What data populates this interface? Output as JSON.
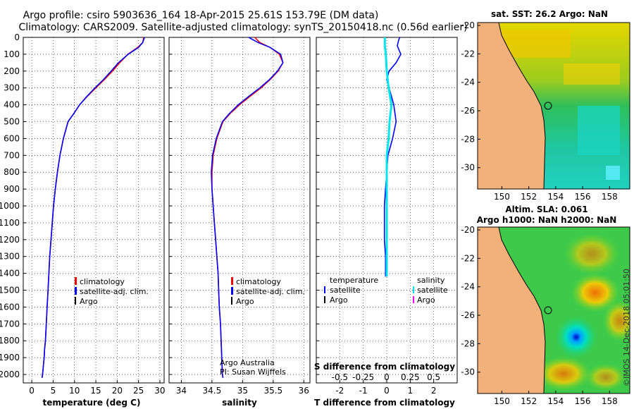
{
  "title_line1": "Argo profile: csiro 5903636_164 18-Apr-2015 25.61S 153.79E (DM data)",
  "title_line2": "Climatology: CARS2009. Satellite-adjusted climatology: synTS_20150418.nc (0.56d earlier)",
  "colors": {
    "climatology": "#ff0000",
    "satellite": "#0000ff",
    "argo": "#000000",
    "satellite_sal": "#00e5ee",
    "argo_sal": "#ff00ff"
  },
  "depth_ticks": [
    0,
    100,
    200,
    300,
    400,
    500,
    600,
    700,
    800,
    900,
    1000,
    1100,
    1200,
    1300,
    1400,
    1500,
    1600,
    1700,
    1800,
    1900,
    2000
  ],
  "legend": {
    "climatology": "climatology",
    "satellite": "satellite-adj. clim.",
    "argo": "Argo"
  },
  "diff_legend": {
    "temperature": "temperature",
    "salinity": "salinity",
    "satellite": "satellite",
    "argo": "Argo"
  },
  "credits": {
    "line1": "Argo Australia",
    "line2": "PI: Susan Wijffels"
  },
  "imos_stamp": "©IMOS 14-Dec-2018 05:01:50",
  "map_sst": {
    "title": "sat. SST: 26.2 Argo: NaN"
  },
  "map_sla": {
    "title_line1": "Altim. SLA: 0.061",
    "title_line2": "Argo h1000: NaN h2000: NaN"
  },
  "map_lat_ticks": [
    -20,
    -22,
    -24,
    -26,
    -28,
    -30
  ],
  "map_lon_ticks": [
    150,
    152,
    154,
    156,
    158
  ],
  "chart_data": [
    {
      "type": "line",
      "title": "",
      "xlabel": "temperature (deg C)",
      "ylabel": "",
      "xlim": [
        -2,
        31
      ],
      "ylim": [
        2050,
        0
      ],
      "xticks": [
        0,
        5,
        10,
        15,
        20,
        25,
        30
      ],
      "series": [
        {
          "name": "climatology",
          "x": [
            26.2,
            26.0,
            24.8,
            22.5,
            20.6,
            18.9,
            17.0,
            15.0,
            13.0,
            11.2,
            9.9,
            8.5,
            7.4,
            6.6,
            6.0,
            5.5,
            5.1,
            4.8,
            4.5,
            4.2,
            4.0,
            3.8,
            3.6,
            3.4,
            3.2,
            3.0,
            2.9,
            2.7,
            2.6,
            2.5,
            2.4
          ],
          "y": [
            0,
            30,
            60,
            100,
            150,
            200,
            250,
            300,
            350,
            400,
            450,
            500,
            600,
            700,
            800,
            900,
            1000,
            1100,
            1200,
            1300,
            1400,
            1500,
            1600,
            1700,
            1800,
            1850,
            1900,
            1950,
            1980,
            2000,
            2020
          ]
        },
        {
          "name": "satellite-adj. clim.",
          "x": [
            26.4,
            26.0,
            25.0,
            22.6,
            20.3,
            18.6,
            16.8,
            14.8,
            12.9,
            11.2,
            9.9,
            8.5,
            7.4,
            6.6,
            6.0,
            5.5,
            5.1,
            4.8,
            4.5,
            4.2,
            4.0,
            3.8,
            3.6,
            3.4,
            3.2,
            3.0,
            2.9,
            2.7,
            2.6,
            2.5,
            2.4
          ],
          "y": [
            0,
            30,
            60,
            100,
            150,
            200,
            250,
            300,
            350,
            400,
            450,
            500,
            600,
            700,
            800,
            900,
            1000,
            1100,
            1200,
            1300,
            1400,
            1500,
            1600,
            1700,
            1800,
            1850,
            1900,
            1950,
            1980,
            2000,
            2020
          ]
        }
      ]
    },
    {
      "type": "line",
      "title": "",
      "xlabel": "salinity",
      "ylabel": "",
      "xlim": [
        33.8,
        36.1
      ],
      "ylim": [
        2050,
        0
      ],
      "xticks": [
        34,
        34.5,
        35,
        35.5,
        36
      ],
      "series": [
        {
          "name": "climatology",
          "x": [
            35.2,
            35.28,
            35.45,
            35.6,
            35.66,
            35.58,
            35.45,
            35.3,
            35.12,
            34.95,
            34.8,
            34.68,
            34.58,
            34.52,
            34.5,
            34.5,
            34.52,
            34.54,
            34.56,
            34.58,
            34.6,
            34.61,
            34.62,
            34.64,
            34.65,
            34.66,
            34.67,
            34.68
          ],
          "y": [
            0,
            30,
            60,
            100,
            150,
            200,
            250,
            300,
            350,
            400,
            450,
            500,
            600,
            700,
            800,
            900,
            1000,
            1100,
            1200,
            1300,
            1400,
            1500,
            1600,
            1700,
            1800,
            1900,
            2000,
            2020
          ]
        },
        {
          "name": "satellite-adj. clim.",
          "x": [
            35.1,
            35.25,
            35.45,
            35.62,
            35.66,
            35.57,
            35.44,
            35.28,
            35.1,
            34.93,
            34.79,
            34.67,
            34.57,
            34.51,
            34.49,
            34.5,
            34.52,
            34.54,
            34.56,
            34.58,
            34.6,
            34.61,
            34.62,
            34.64,
            34.65,
            34.66,
            34.67,
            34.68
          ],
          "y": [
            0,
            30,
            60,
            100,
            150,
            200,
            250,
            300,
            350,
            400,
            450,
            500,
            600,
            700,
            800,
            900,
            1000,
            1100,
            1200,
            1300,
            1400,
            1500,
            1600,
            1700,
            1800,
            1900,
            2000,
            2020
          ]
        }
      ]
    },
    {
      "type": "line",
      "title": "",
      "xlabel": "T difference from climatology",
      "xlabel_top": "S difference from climatology",
      "ylabel": "",
      "xlim": [
        -3,
        3
      ],
      "ylim": [
        2050,
        0
      ],
      "xticks": [
        -2,
        -1,
        0,
        1,
        2
      ],
      "xticks_top": [
        "-0.5",
        "-0.25",
        "0",
        "0.25",
        "0.5"
      ],
      "series": [
        {
          "name": "temperature satellite",
          "x": [
            0.55,
            0.5,
            0.45,
            0.6,
            0.4,
            0.1,
            0.0,
            0.1,
            0.3,
            0.4,
            0.25,
            0.05,
            0.0,
            -0.05,
            -0.1,
            -0.1,
            -0.1,
            -0.05,
            -0.05,
            -0.05,
            -0.05
          ],
          "y": [
            0,
            20,
            50,
            100,
            150,
            200,
            250,
            300,
            400,
            500,
            600,
            700,
            800,
            900,
            1000,
            1100,
            1200,
            1300,
            1350,
            1400,
            1420
          ]
        },
        {
          "name": "salinity satellite",
          "x": [
            -0.02,
            -0.02,
            -0.01,
            0.0,
            0.02,
            0.05,
            0.03,
            0.02,
            0.0,
            0.0,
            0.0,
            0.0,
            0.0,
            0.0,
            0.0,
            0.0,
            0.0
          ],
          "y": [
            0,
            50,
            100,
            200,
            300,
            400,
            500,
            600,
            700,
            800,
            900,
            1000,
            1100,
            1200,
            1300,
            1400,
            1420
          ]
        }
      ]
    }
  ]
}
